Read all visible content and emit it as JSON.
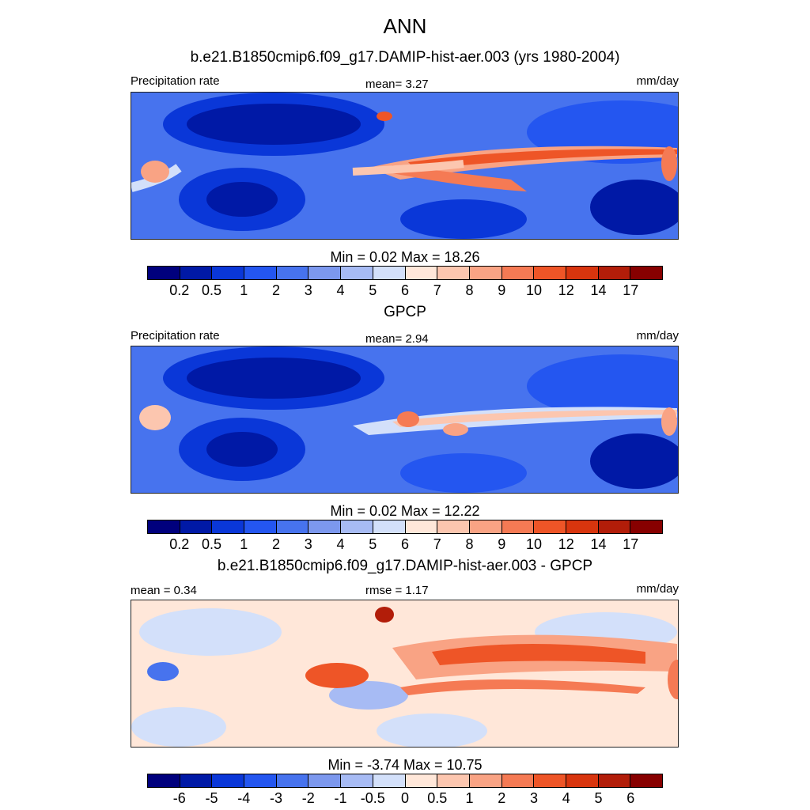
{
  "figure_title": "ANN",
  "panels": [
    {
      "title": "b.e21.B1850cmip6.f09_g17.DAMIP-hist-aer.003 (yrs 1980-2004)",
      "left_label": "Precipitation rate",
      "center_label": "mean=   3.27",
      "right_label": "mm/day",
      "minmax": "Min =   0.02 Max =  18.26",
      "colorbar_levels": [
        "0.2",
        "0.5",
        "1",
        "2",
        "3",
        "4",
        "5",
        "6",
        "7",
        "8",
        "9",
        "10",
        "12",
        "14",
        "17"
      ]
    },
    {
      "title": "GPCP",
      "left_label": "Precipitation rate",
      "center_label": "mean=   2.94",
      "right_label": "mm/day",
      "minmax": "Min =   0.02 Max =  12.22",
      "colorbar_levels": [
        "0.2",
        "0.5",
        "1",
        "2",
        "3",
        "4",
        "5",
        "6",
        "7",
        "8",
        "9",
        "10",
        "12",
        "14",
        "17"
      ]
    },
    {
      "title": "b.e21.B1850cmip6.f09_g17.DAMIP-hist-aer.003 - GPCP",
      "left_label": "mean =   0.34",
      "center_label": "rmse =   1.17",
      "right_label": "mm/day",
      "minmax": "Min =  -3.74 Max =  10.75",
      "colorbar_levels": [
        "-6",
        "-5",
        "-4",
        "-3",
        "-2",
        "-1",
        "-0.5",
        "0",
        "0.5",
        "1",
        "2",
        "3",
        "4",
        "5",
        "6"
      ]
    }
  ],
  "colors": {
    "palette": [
      "#00007d",
      "#0019a6",
      "#0a37d8",
      "#2456f0",
      "#4773ee",
      "#7c98ee",
      "#a7bbf4",
      "#d3e0fa",
      "#ffe7d9",
      "#fcc6af",
      "#f9a384",
      "#f57a54",
      "#ee5527",
      "#d8350e",
      "#b21d09",
      "#870000"
    ]
  }
}
